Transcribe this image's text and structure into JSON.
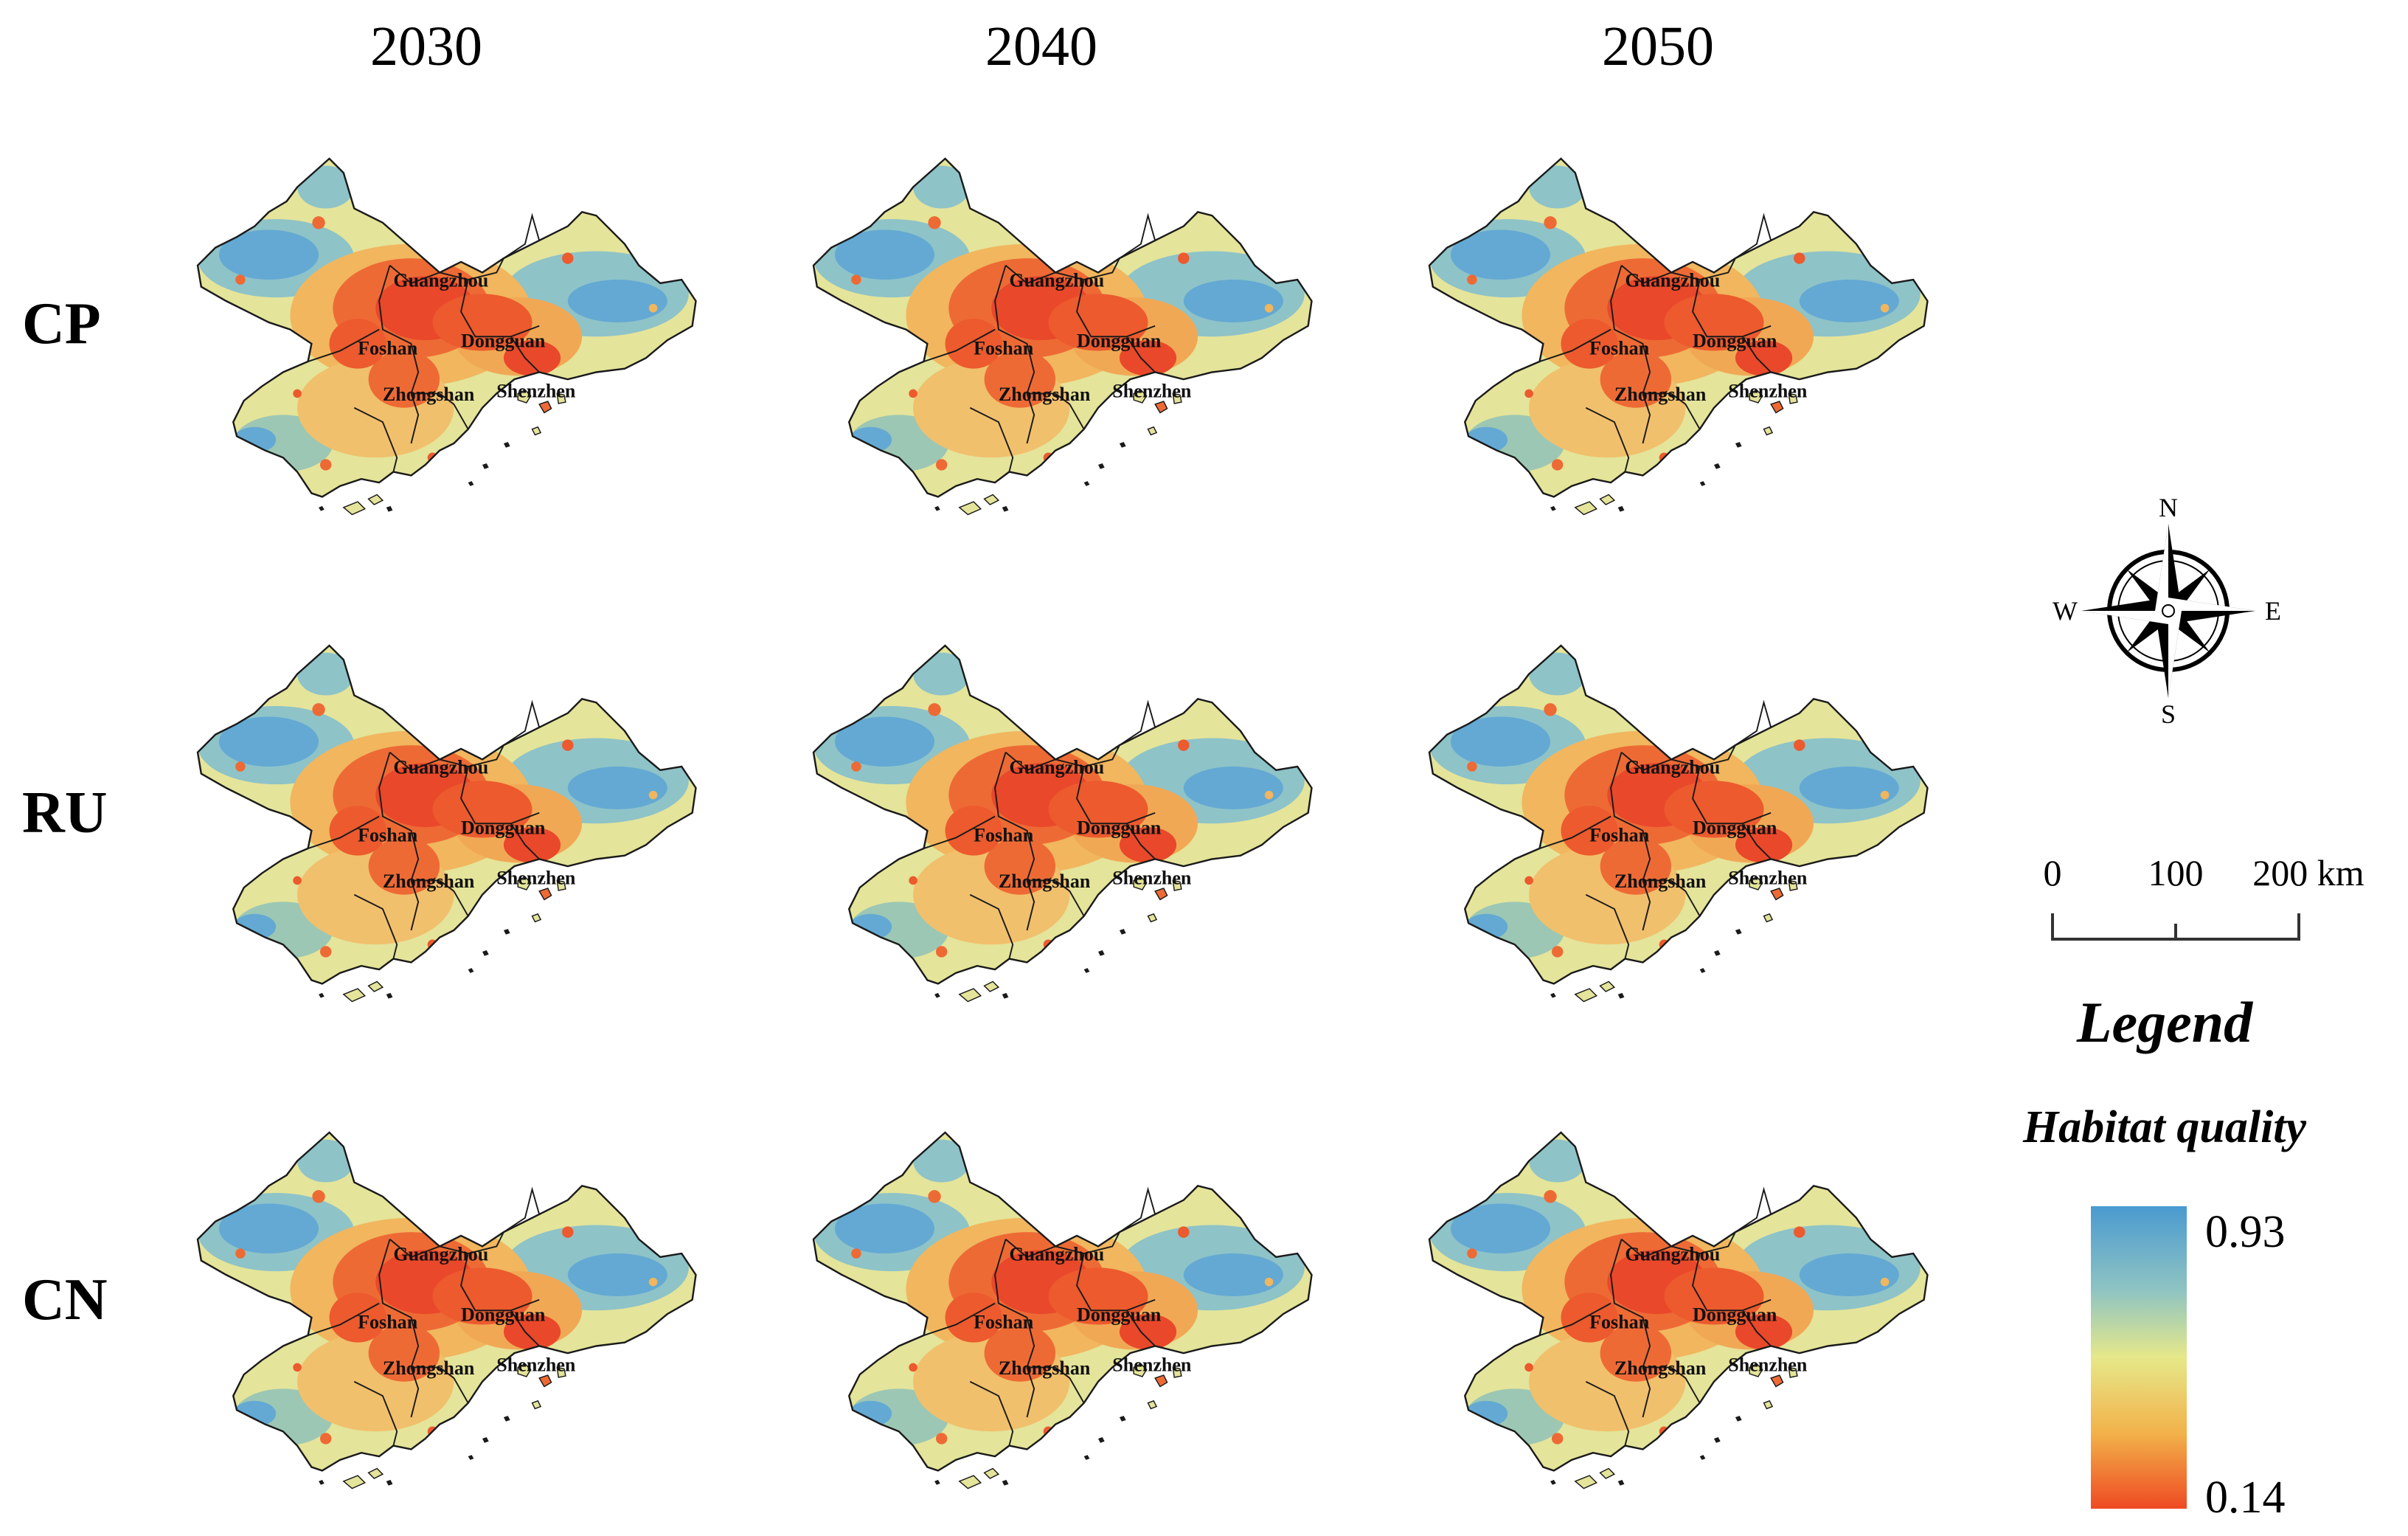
{
  "columns": [
    {
      "year": "2030"
    },
    {
      "year": "2040"
    },
    {
      "year": "2050"
    }
  ],
  "rows": [
    {
      "scenario": "CP"
    },
    {
      "scenario": "RU"
    },
    {
      "scenario": "CN"
    }
  ],
  "city_labels": [
    "Guangzhou",
    "Foshan",
    "Dongguan",
    "Zhongshan",
    "Shenzhen"
  ],
  "compass": {
    "north": "N",
    "south": "S",
    "east": "E",
    "west": "W"
  },
  "scale_bar": {
    "ticks": [
      "0",
      "100",
      "200 km"
    ]
  },
  "legend": {
    "title": "Legend",
    "variable": "Habitat quality",
    "max_label": "0.93",
    "min_label": "0.14",
    "max": 0.93,
    "min": 0.14,
    "colors": [
      "#4a9ad0",
      "#8fc4c2",
      "#e6e88a",
      "#f2b24a",
      "#ee4a22"
    ]
  },
  "map_palette": {
    "blue": "#5aa5d4",
    "teal": "#9bc9b9",
    "yellow": "#e4e49a",
    "orange": "#f0a55a",
    "red": "#e9492a"
  }
}
